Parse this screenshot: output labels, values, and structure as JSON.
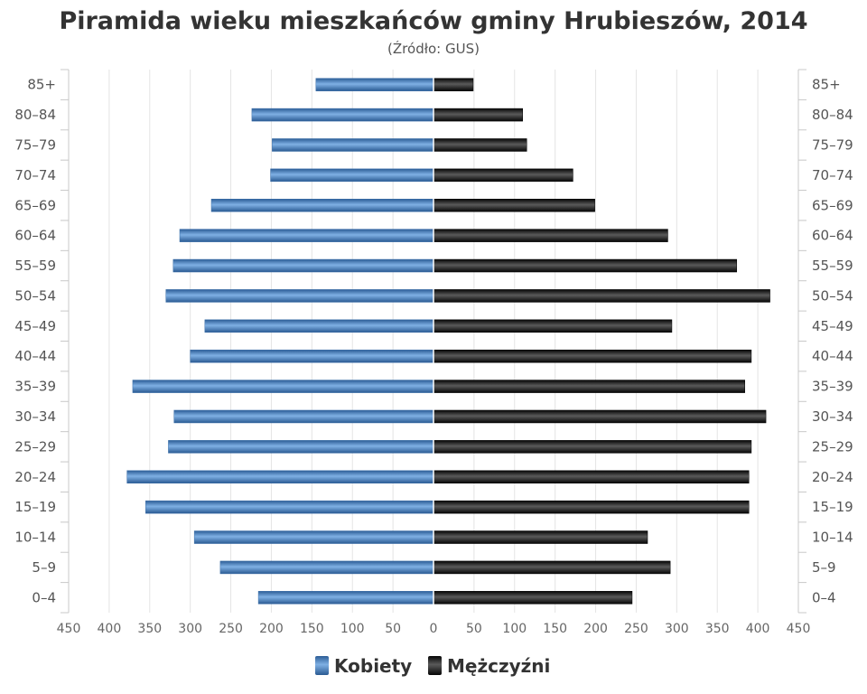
{
  "chart_data": {
    "type": "bar",
    "orientation": "horizontal-pyramid",
    "title": "Piramida wieku mieszkańców gminy Hrubieszów, 2014",
    "subtitle": "(Źródło: GUS)",
    "categories": [
      "85+",
      "80–84",
      "75–79",
      "70–74",
      "65–69",
      "60–64",
      "55–59",
      "50–54",
      "45–49",
      "40–44",
      "35–39",
      "30–34",
      "25–29",
      "20–24",
      "15–19",
      "10–14",
      "5–9",
      "0–4"
    ],
    "series": [
      {
        "name": "Kobiety",
        "side": "left",
        "color": "#4a86c6",
        "values": [
          145,
          224,
          199,
          201,
          274,
          313,
          321,
          330,
          282,
          300,
          371,
          320,
          327,
          378,
          355,
          295,
          263,
          216
        ]
      },
      {
        "name": "Mężczyźni",
        "side": "right",
        "color": "#1a1a1a",
        "values": [
          49,
          110,
          115,
          172,
          199,
          289,
          374,
          415,
          294,
          392,
          384,
          410,
          392,
          389,
          389,
          264,
          292,
          245
        ]
      }
    ],
    "xlim": [
      -450,
      450
    ],
    "xticks": [
      "450",
      "400",
      "350",
      "300",
      "250",
      "200",
      "150",
      "100",
      "50",
      "0",
      "50",
      "100",
      "150",
      "200",
      "250",
      "300",
      "350",
      "400",
      "450"
    ],
    "grid": true,
    "legend_position": "bottom"
  }
}
